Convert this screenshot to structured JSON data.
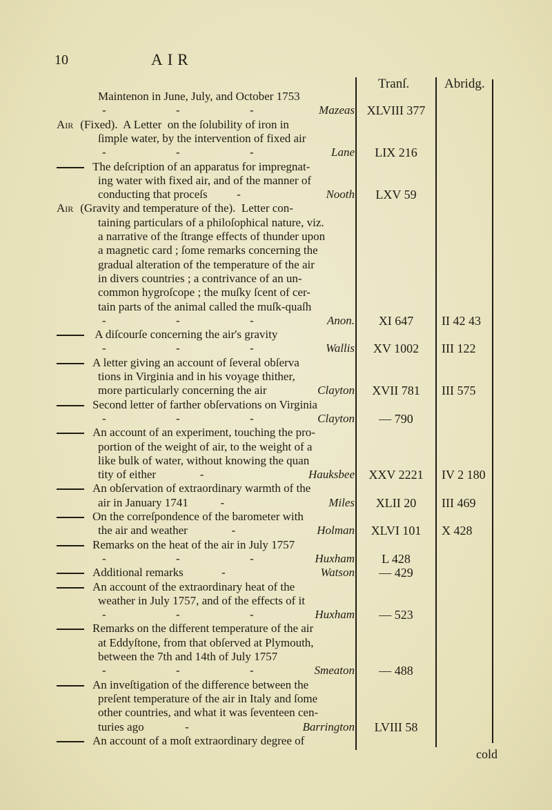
{
  "page": {
    "number": "10",
    "running_head": "AIR",
    "catchword": "cold"
  },
  "columns": {
    "transactions": "Tranſ.",
    "abridgment": "Abridg."
  },
  "heading_word": "Air",
  "leader": "-",
  "lines": [
    {
      "type": "cont",
      "text": "Maintenon in June, July, and October 1753"
    },
    {
      "type": "leader",
      "author": "Mazeas",
      "transf": "XLVIII 377"
    },
    {
      "type": "head",
      "text": " (Fixed).  A Letter  on the ſolubility of iron in"
    },
    {
      "type": "cont",
      "text": "ſimple water, by the intervention of fixed air"
    },
    {
      "type": "leader",
      "author": "Lane",
      "transf": "LIX 216"
    },
    {
      "type": "dash",
      "text": "The deſcription of an apparatus for impregnat-"
    },
    {
      "type": "cont",
      "text": "ing water with fixed air, and of the manner of"
    },
    {
      "type": "cont",
      "text": "conducting that proceſs          -",
      "author": "Nooth",
      "transf": "LXV 59"
    },
    {
      "type": "head",
      "text": " (Gravity and temperature of the).  Letter con-"
    },
    {
      "type": "cont",
      "text": "taining particulars of a philoſophical nature, viz."
    },
    {
      "type": "cont",
      "text": "a narrative of the ſtrange effects of thunder upon"
    },
    {
      "type": "cont",
      "text": "a magnetic card ; ſome remarks concerning the"
    },
    {
      "type": "cont",
      "text": "gradual alteration of the temperature of the air"
    },
    {
      "type": "cont",
      "text": "in divers countries ; a contrivance of an un-"
    },
    {
      "type": "cont",
      "text": "common hygroſcope ; the muſky ſcent of cer-"
    },
    {
      "type": "cont",
      "text": "tain parts of the animal called the muſk-quaſh"
    },
    {
      "type": "leader",
      "author": "Anon.",
      "transf": "XI 647",
      "abridg": "II 42 43"
    },
    {
      "type": "dash",
      "text": " A diſcourſe concerning the air's gravity"
    },
    {
      "type": "leader",
      "author": "Wallis",
      "transf": "XV 1002",
      "abridg": "III 122"
    },
    {
      "type": "dash",
      "text": "A letter giving an account of ſeveral obſerva"
    },
    {
      "type": "cont",
      "text": "tions in Virginia and in his voyage thither,"
    },
    {
      "type": "cont",
      "text": "more particularly concerning the air",
      "author": "Clayton",
      "transf": "XVII 781",
      "abridg": "III 575"
    },
    {
      "type": "dash",
      "text": "Second letter of farther obſervations on Virginia"
    },
    {
      "type": "leader",
      "author": "Clayton",
      "transf": "— 790"
    },
    {
      "type": "dash",
      "text": "An account of an experiment, touching the pro-"
    },
    {
      "type": "cont",
      "text": "portion of the weight of air, to the weight of a"
    },
    {
      "type": "cont",
      "text": "like bulk of water, without knowing the quan"
    },
    {
      "type": "cont",
      "text": "tity of either               -",
      "author": "Hauksbee",
      "transf": "XXV 2221",
      "abridg": "IV 2 180"
    },
    {
      "type": "dash",
      "text": "An obſervation of extraordinary warmth of the"
    },
    {
      "type": "cont",
      "text": "air in January 1741           -",
      "author": "Miles",
      "transf": "XLII 20",
      "abridg": "III 469"
    },
    {
      "type": "dash",
      "text": "On the correſpondence of the barometer with"
    },
    {
      "type": "cont",
      "text": "the air and weather               -",
      "author": "Holman",
      "transf": "XLVI 101",
      "abridg": "X 428"
    },
    {
      "type": "dash",
      "text": "Remarks on the heat of the air in July 1757"
    },
    {
      "type": "leader",
      "author": "Huxham",
      "transf": "L 428"
    },
    {
      "type": "dash",
      "text": "Additional remarks             -",
      "author": "Watson",
      "transf": "— 429"
    },
    {
      "type": "dash",
      "text": "An account of the extraordinary heat of the"
    },
    {
      "type": "cont",
      "text": "weather in July 1757, and of the effects of it"
    },
    {
      "type": "leader",
      "author": "Huxham",
      "transf": "— 523"
    },
    {
      "type": "dash",
      "text": "Remarks on the different temperature of the air"
    },
    {
      "type": "cont",
      "text": "at Eddyſtone, from that obſerved at Plymouth,"
    },
    {
      "type": "cont",
      "text": "between the 7th and 14th of July 1757"
    },
    {
      "type": "leader",
      "author": "Smeaton",
      "transf": "— 488"
    },
    {
      "type": "dash",
      "text": "An inveſtigation of the difference between the"
    },
    {
      "type": "cont",
      "text": "preſent temperature of the air in Italy and ſome"
    },
    {
      "type": "cont",
      "text": "other countries, and what it was ſeventeen cen-"
    },
    {
      "type": "cont",
      "text": "turies ago              -",
      "author": "Barrington",
      "transf": "LVIII 58"
    },
    {
      "type": "dash",
      "text": "An account of a moſt extraordinary degree of"
    }
  ]
}
